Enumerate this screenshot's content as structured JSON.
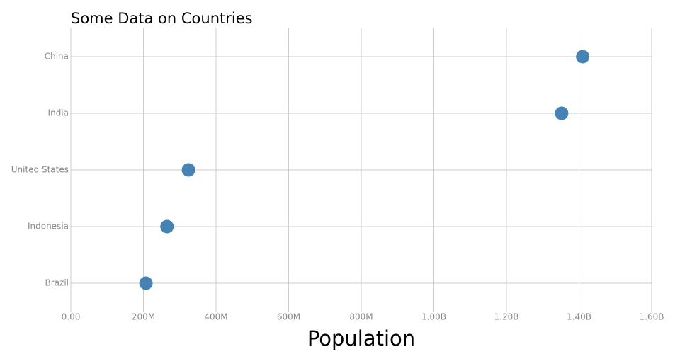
{
  "chart_data": {
    "type": "dot",
    "title": "Some Data on Countries",
    "x_label": "Population",
    "categories": [
      "China",
      "India",
      "United States",
      "Indonesia",
      "Brazil"
    ],
    "values": [
      1410000000,
      1352000000,
      324000000,
      265000000,
      207000000
    ],
    "color": "#4682b4",
    "xlim": [
      0,
      1600000000
    ],
    "xticks": [
      {
        "value": 0,
        "label": "0.00"
      },
      {
        "value": 200000000,
        "label": "200M"
      },
      {
        "value": 400000000,
        "label": "400M"
      },
      {
        "value": 600000000,
        "label": "600M"
      },
      {
        "value": 800000000,
        "label": "800M"
      },
      {
        "value": 1000000000,
        "label": "1.00B"
      },
      {
        "value": 1200000000,
        "label": "1.20B"
      },
      {
        "value": 1400000000,
        "label": "1.40B"
      },
      {
        "value": 1600000000,
        "label": "1.60B"
      }
    ],
    "grid": true
  }
}
